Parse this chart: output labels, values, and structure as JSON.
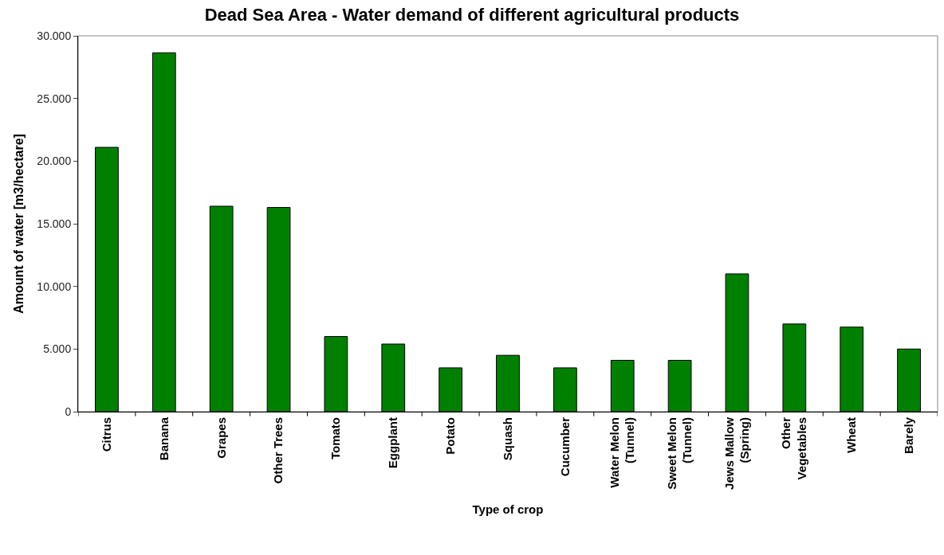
{
  "chart_data": {
    "type": "bar",
    "title": "Dead Sea Area - Water demand of different agricultural products",
    "xlabel": "Type of crop",
    "ylabel": "Amount of water [m3/hectare]",
    "categories": [
      "Citrus",
      "Banana",
      "Grapes",
      "Other Trees",
      "Tomato",
      "Eggplant",
      "Potato",
      "Squash",
      "Cucumber",
      "Water Melon\n(Tunnel)",
      "Sweet Melon\n(Tunnel)",
      "Jews Mallow\n(Spring)",
      "Other\nVegetables",
      "Wheat",
      "Barely"
    ],
    "values": [
      21100,
      28650,
      16400,
      16300,
      6000,
      5400,
      3500,
      4500,
      3500,
      4100,
      4100,
      11000,
      7000,
      6750,
      5000
    ],
    "color": "#008000",
    "ylim": [
      0,
      30000
    ],
    "yticks": [
      0,
      {
        "value": 5000,
        "label": "5.000"
      },
      {
        "value": 10000,
        "label": "10.000"
      },
      {
        "value": 15000,
        "label": "15.000"
      },
      {
        "value": 20000,
        "label": "20.000"
      },
      {
        "value": 25000,
        "label": "25.000"
      },
      {
        "value": 30000,
        "label": "30.000"
      }
    ],
    "grid": false
  }
}
